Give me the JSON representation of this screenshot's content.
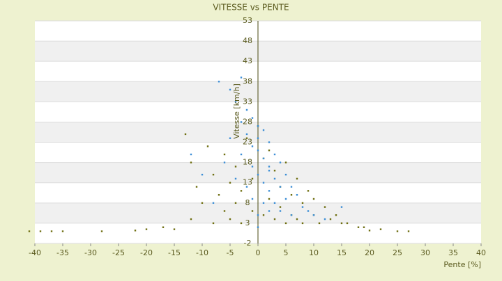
{
  "chart_data": {
    "type": "scatter",
    "title": "VITESSE vs PENTE",
    "x_label": "Pente [%]",
    "y_label": "Vitesse [km/h]",
    "xlim": [
      -40,
      40
    ],
    "xticks": [
      -40,
      -35,
      -30,
      -25,
      -20,
      -15,
      -10,
      -5,
      0,
      5,
      10,
      15,
      20,
      25,
      30,
      35,
      40
    ],
    "ylim": [
      -2,
      53
    ],
    "yticks": [
      53,
      48,
      43,
      38,
      33,
      28,
      23,
      18,
      13,
      8,
      3,
      -2
    ],
    "grid": true,
    "series": [
      {
        "color": "#6e6e10",
        "x": [
          -41,
          -39,
          -37,
          -35,
          -28,
          -22,
          -20,
          -17,
          -15,
          -13,
          -12,
          -12,
          -11,
          -10,
          -9,
          -8,
          -8,
          -7,
          -6,
          -6,
          -5,
          -5,
          -4,
          -4,
          -3,
          -3,
          -2,
          -1,
          -1,
          0,
          1,
          1,
          2,
          2,
          3,
          3,
          4,
          4,
          5,
          5,
          6,
          6,
          7,
          7,
          8,
          8,
          9,
          10,
          10,
          11,
          12,
          13,
          14,
          15,
          16,
          18,
          19,
          20,
          22,
          25,
          27
        ],
        "values": [
          1,
          1,
          1,
          1,
          1,
          1.2,
          1.5,
          2,
          1.5,
          25,
          18,
          4,
          12,
          8,
          22,
          15,
          3,
          10,
          20,
          6,
          13,
          4,
          17,
          8,
          11,
          3,
          24,
          14,
          6,
          27,
          19,
          5,
          21,
          9,
          16,
          4,
          12,
          7,
          18,
          3,
          10,
          5,
          14,
          4,
          8,
          3,
          11,
          9,
          5,
          3,
          7,
          4,
          5,
          3,
          3,
          2,
          2,
          1.2,
          1.5,
          1,
          1
        ]
      },
      {
        "color": "#3d8fd6",
        "x": [
          -7,
          -6,
          -5,
          -5,
          -4,
          -4,
          -3,
          -3,
          -3,
          -2,
          -2,
          -2,
          -1,
          -1,
          -1,
          -1,
          0,
          0,
          0,
          0,
          0,
          1,
          1,
          1,
          1,
          2,
          2,
          2,
          2,
          3,
          3,
          3,
          4,
          4,
          4,
          5,
          5,
          6,
          6,
          7,
          8,
          9,
          10,
          12,
          -12,
          -10,
          -8,
          0,
          2,
          15
        ],
        "values": [
          38,
          18,
          36,
          24,
          33,
          14,
          39,
          28,
          20,
          31,
          25,
          12,
          29,
          22,
          17,
          9,
          27,
          21,
          15,
          5,
          2,
          26,
          19,
          13,
          8,
          23,
          17,
          11,
          6,
          20,
          14,
          8,
          18,
          12,
          6,
          15,
          9,
          12,
          5,
          10,
          7,
          6,
          5,
          4,
          20,
          15,
          8,
          24,
          16,
          7
        ]
      }
    ]
  }
}
